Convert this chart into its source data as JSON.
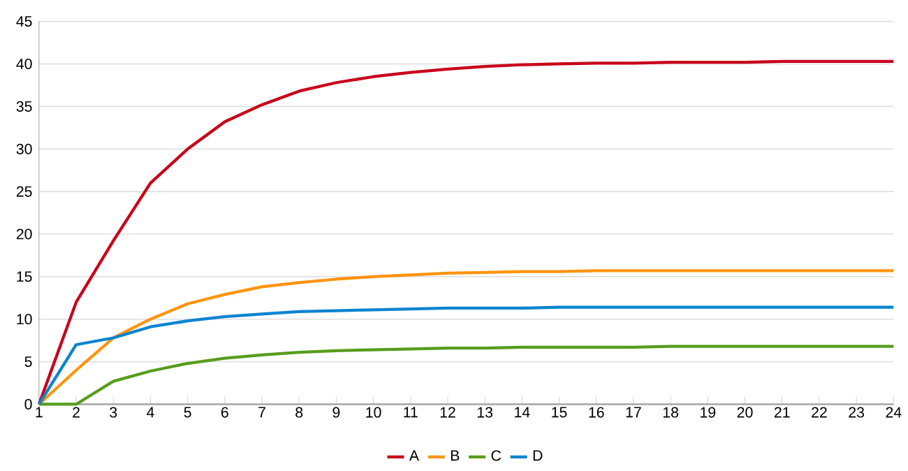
{
  "chart_data": {
    "type": "line",
    "categories": [
      "1",
      "2",
      "3",
      "4",
      "5",
      "6",
      "7",
      "8",
      "9",
      "10",
      "11",
      "12",
      "13",
      "14",
      "15",
      "16",
      "17",
      "18",
      "19",
      "20",
      "21",
      "22",
      "23",
      "24"
    ],
    "series": [
      {
        "name": "A",
        "color": "#c8001a",
        "values": [
          0,
          12,
          19.2,
          26,
          30,
          33.2,
          35.2,
          36.8,
          37.8,
          38.5,
          39,
          39.4,
          39.7,
          39.9,
          40,
          40.1,
          40.1,
          40.2,
          40.2,
          40.2,
          40.3,
          40.3,
          40.3,
          40.3
        ]
      },
      {
        "name": "B",
        "color": "#ff9410",
        "values": [
          0,
          4,
          7.8,
          10,
          11.8,
          12.9,
          13.8,
          14.3,
          14.7,
          15,
          15.2,
          15.4,
          15.5,
          15.6,
          15.6,
          15.7,
          15.7,
          15.7,
          15.7,
          15.7,
          15.7,
          15.7,
          15.7,
          15.7
        ]
      },
      {
        "name": "C",
        "color": "#579d1c",
        "values": [
          0,
          0,
          2.7,
          3.9,
          4.8,
          5.4,
          5.8,
          6.1,
          6.3,
          6.4,
          6.5,
          6.6,
          6.6,
          6.7,
          6.7,
          6.7,
          6.7,
          6.8,
          6.8,
          6.8,
          6.8,
          6.8,
          6.8,
          6.8
        ]
      },
      {
        "name": "D",
        "color": "#0a84d0",
        "values": [
          0,
          7,
          7.8,
          9.1,
          9.8,
          10.3,
          10.6,
          10.9,
          11,
          11.1,
          11.2,
          11.3,
          11.3,
          11.3,
          11.4,
          11.4,
          11.4,
          11.4,
          11.4,
          11.4,
          11.4,
          11.4,
          11.4,
          11.4
        ]
      }
    ],
    "ylim": [
      0,
      45
    ],
    "yticks": [
      0,
      5,
      10,
      15,
      20,
      25,
      30,
      35,
      40,
      45
    ],
    "grid": "y",
    "legend": "bottom",
    "marker": "none",
    "line_style": "solid"
  }
}
